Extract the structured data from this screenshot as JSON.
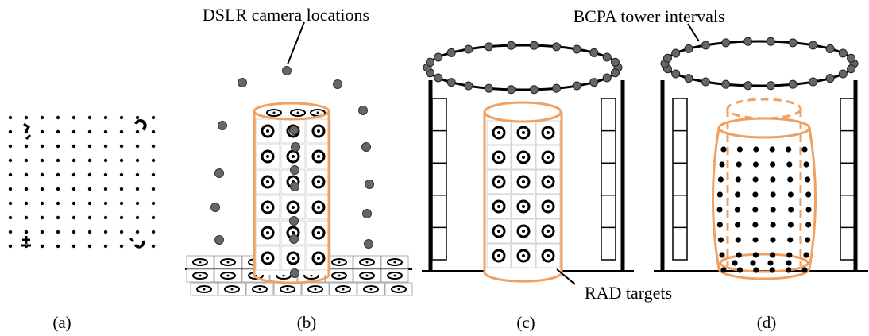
{
  "panels": [
    {
      "id": "a",
      "label": "(a)"
    },
    {
      "id": "b",
      "label": "(b)"
    },
    {
      "id": "c",
      "label": "(c)"
    },
    {
      "id": "d",
      "label": "(d)"
    }
  ],
  "annotations": {
    "dslr": "DSLR camera locations",
    "bcpa": "BCPA tower intervals",
    "rad": "RAD targets"
  },
  "colors": {
    "cylinder": "#f0a060",
    "ink": "#000000",
    "camera": "#666666"
  }
}
